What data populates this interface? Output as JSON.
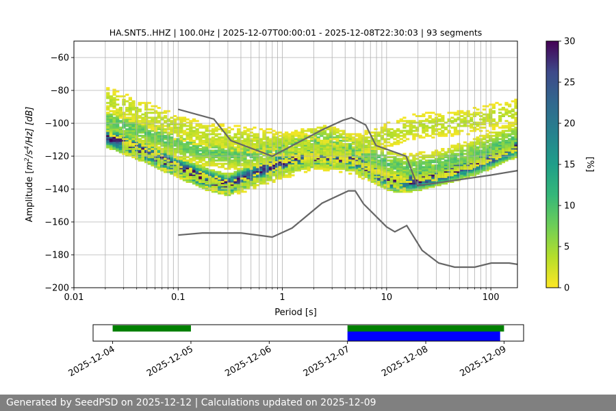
{
  "chart_data": [
    {
      "type": "heatmap",
      "title": "HA.SNT5..HHZ | 100.0Hz | 2025-12-07T00:00:01 - 2025-12-08T22:30:03 | 93 segments",
      "xlabel": "Period [s]",
      "ylabel_parts": {
        "pre": "Amplitude [",
        "m": "m",
        "sup1": "2",
        "mid": "/s",
        "sup2": "4",
        "post": "/Hz] [dB]"
      },
      "x_scale": "log",
      "xlim": [
        0.01,
        180
      ],
      "ylim": [
        -200,
        -50
      ],
      "x_ticks": [
        {
          "value": 0.01,
          "label": "0.01"
        },
        {
          "value": 0.1,
          "label": "0.1"
        },
        {
          "value": 1,
          "label": "1"
        },
        {
          "value": 10,
          "label": "10"
        },
        {
          "value": 100,
          "label": "100"
        }
      ],
      "y_ticks": [
        {
          "value": -60,
          "label": "−60"
        },
        {
          "value": -80,
          "label": "−80"
        },
        {
          "value": -100,
          "label": "−100"
        },
        {
          "value": -120,
          "label": "−120"
        },
        {
          "value": -140,
          "label": "−140"
        },
        {
          "value": -160,
          "label": "−160"
        },
        {
          "value": -180,
          "label": "−180"
        },
        {
          "value": -200,
          "label": "−200"
        }
      ],
      "noise_models": {
        "high": [
          [
            0.1,
            -91.5
          ],
          [
            0.22,
            -97.4
          ],
          [
            0.32,
            -110.5
          ],
          [
            0.8,
            -120
          ],
          [
            2.4,
            -104
          ],
          [
            3.8,
            -98.2
          ],
          [
            4.6,
            -96.6
          ],
          [
            6.3,
            -101
          ],
          [
            7.9,
            -113.5
          ],
          [
            15.4,
            -120
          ],
          [
            19.8,
            -138
          ],
          [
            100,
            -131.5
          ],
          [
            180,
            -128.8
          ]
        ],
        "low": [
          [
            0.1,
            -168
          ],
          [
            0.17,
            -166.7
          ],
          [
            0.4,
            -166.7
          ],
          [
            0.8,
            -169.2
          ],
          [
            1.24,
            -163.7
          ],
          [
            2.4,
            -148.6
          ],
          [
            4.3,
            -141.1
          ],
          [
            5.0,
            -141.1
          ],
          [
            6.0,
            -149.0
          ],
          [
            10.0,
            -163.0
          ],
          [
            12.0,
            -166.0
          ],
          [
            15.6,
            -162.2
          ],
          [
            21.9,
            -177.3
          ],
          [
            31.6,
            -185.0
          ],
          [
            45.0,
            -187.5
          ],
          [
            70.0,
            -187.5
          ],
          [
            101,
            -185.0
          ],
          [
            150,
            -185.0
          ],
          [
            180,
            -185.8
          ]
        ]
      },
      "psd_bands": [
        {
          "name": "dominant",
          "points": [
            [
              0.02,
              -108
            ],
            [
              0.05,
              -118
            ],
            [
              0.1,
              -127
            ],
            [
              0.2,
              -135
            ],
            [
              0.3,
              -138
            ],
            [
              0.5,
              -132
            ],
            [
              0.8,
              -126
            ],
            [
              1.2,
              -123
            ],
            [
              2,
              -121
            ],
            [
              3,
              -121
            ],
            [
              5,
              -123
            ],
            [
              8,
              -131
            ],
            [
              12,
              -136
            ],
            [
              20,
              -135
            ],
            [
              40,
              -130
            ],
            [
              80,
              -124
            ],
            [
              180,
              -114
            ]
          ],
          "width": 6,
          "max_pct": 30,
          "coverage": 0.95
        },
        {
          "name": "upper",
          "points": [
            [
              0.02,
              -98
            ],
            [
              0.05,
              -106
            ],
            [
              0.1,
              -113
            ],
            [
              0.2,
              -118
            ],
            [
              0.4,
              -120
            ],
            [
              0.8,
              -117
            ],
            [
              1.5,
              -113
            ],
            [
              2.5,
              -110
            ],
            [
              4,
              -114
            ],
            [
              8,
              -122
            ],
            [
              15,
              -128
            ],
            [
              30,
              -126
            ],
            [
              60,
              -120
            ],
            [
              180,
              -108
            ]
          ],
          "width": 8,
          "max_pct": 9,
          "coverage": 0.6
        },
        {
          "name": "high",
          "points": [
            [
              0.02,
              -86
            ],
            [
              0.05,
              -95
            ],
            [
              0.1,
              -103
            ],
            [
              0.2,
              -108
            ],
            [
              0.4,
              -110
            ],
            [
              0.8,
              -112
            ],
            [
              1.5,
              -114
            ],
            [
              3,
              -118
            ],
            [
              6,
              -113
            ],
            [
              10,
              -108
            ],
            [
              20,
              -102
            ],
            [
              40,
              -101
            ],
            [
              80,
              -98
            ],
            [
              180,
              -93
            ]
          ],
          "width": 7,
          "max_pct": 4,
          "coverage": 0.35
        },
        {
          "name": "lower",
          "points": [
            [
              0.03,
              -115
            ],
            [
              0.06,
              -122
            ],
            [
              0.1,
              -129
            ],
            [
              0.2,
              -136
            ],
            [
              0.3,
              -140
            ],
            [
              0.5,
              -137
            ],
            [
              1,
              -130
            ],
            [
              2,
              -124
            ],
            [
              4,
              -126
            ],
            [
              8,
              -133
            ],
            [
              15,
              -138
            ]
          ],
          "width": 4,
          "max_pct": 5,
          "coverage": 0.4
        }
      ],
      "colorbar": {
        "label": "[%]",
        "range": [
          0,
          30
        ],
        "colormap": "viridis_r",
        "ticks": [
          {
            "value": 0,
            "label": "0"
          },
          {
            "value": 5,
            "label": "5"
          },
          {
            "value": 10,
            "label": "10"
          },
          {
            "value": 15,
            "label": "15"
          },
          {
            "value": 20,
            "label": "20"
          },
          {
            "value": 25,
            "label": "25"
          },
          {
            "value": 30,
            "label": "30"
          }
        ]
      }
    },
    {
      "type": "timeline",
      "x_ticks": [
        "2025-12-04",
        "2025-12-05",
        "2025-12-06",
        "2025-12-07",
        "2025-12-08",
        "2025-12-09"
      ],
      "xlim_days": [
        -0.25,
        5.25
      ],
      "segments": [
        {
          "name": "available",
          "color": "#008000",
          "start_day": 0.0,
          "end_day": 1.0,
          "row": "top"
        },
        {
          "name": "available",
          "color": "#008000",
          "start_day": 3.0,
          "end_day": 5.0,
          "row": "top"
        },
        {
          "name": "selected",
          "color": "#0000ff",
          "start_day": 3.0,
          "end_day": 4.95,
          "row": "bottom"
        }
      ]
    }
  ],
  "colors": {
    "model": "#666666",
    "grid": "#b0b0b0",
    "green": "#008000",
    "blue": "#0000ff",
    "footer_bg": "#808080"
  },
  "footer": {
    "text": "Generated by SeedPSD on 2025-12-12 | Calculations updated on 2025-12-09"
  }
}
